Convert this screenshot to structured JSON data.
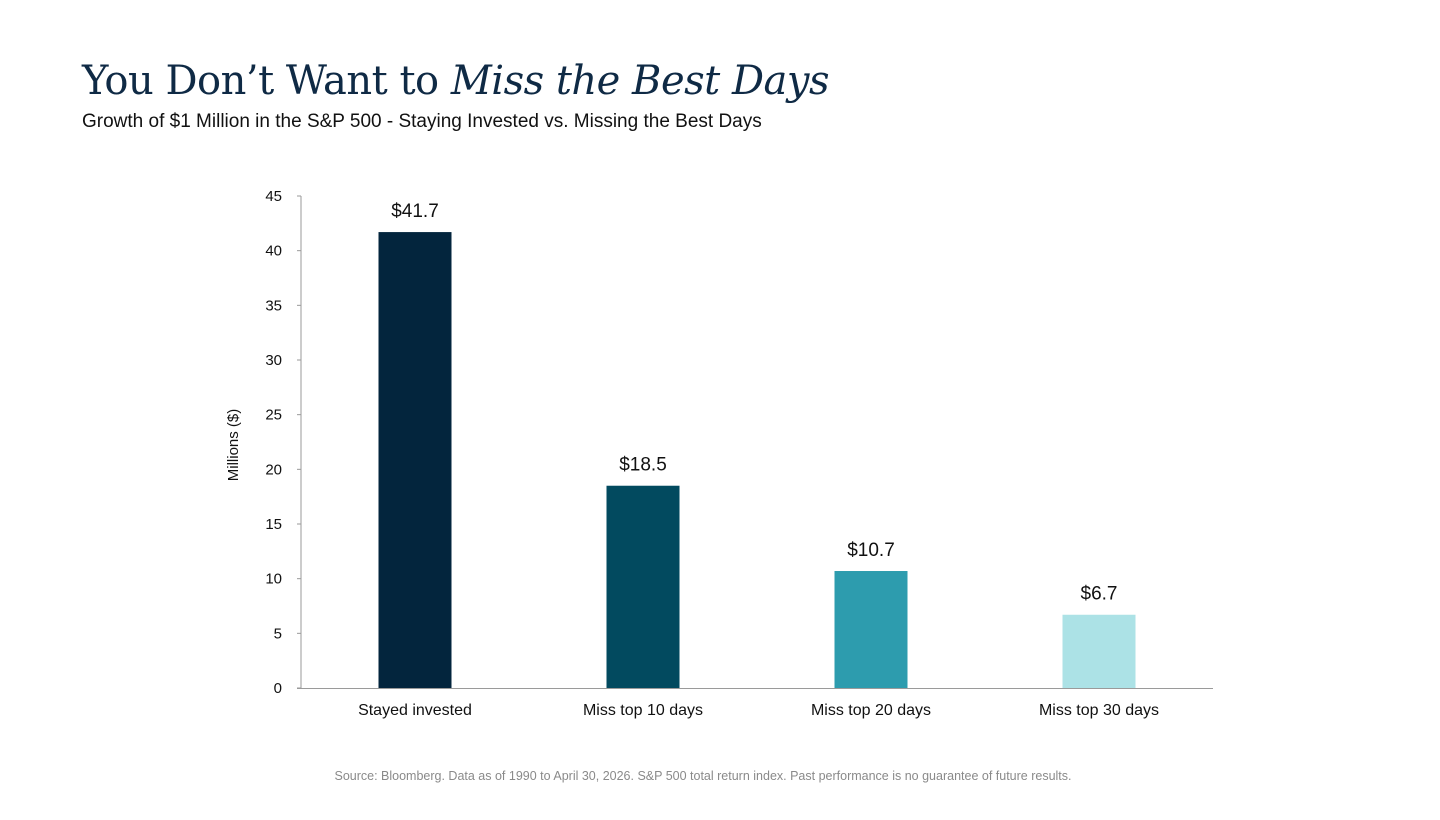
{
  "header": {
    "title_plain": "You Don’t Want to ",
    "title_emphasis": "Miss the Best Days",
    "subtitle": "Growth of $1 Million in the S&P 500 - Staying Invested vs. Missing the Best Days"
  },
  "chart_data": {
    "type": "bar",
    "title": "You Don’t Want to Miss the Best Days",
    "subtitle": "Growth of $1 Million in the S&P 500 - Staying Invested vs. Missing the Best Days",
    "xlabel": "",
    "ylabel": "Millions ($)",
    "ylim": [
      0,
      45
    ],
    "yticks": [
      0,
      5,
      10,
      15,
      20,
      25,
      30,
      35,
      40,
      45
    ],
    "grid": false,
    "legend": "none",
    "categories": [
      "Stayed invested",
      "Miss top 10 days",
      "Miss top 20 days",
      "Miss top 30 days"
    ],
    "values": [
      41.7,
      18.5,
      10.7,
      6.7
    ],
    "data_labels": [
      "$41.7",
      "$18.5",
      "$10.7",
      "$6.7"
    ],
    "colors": [
      "#03253d",
      "#024a5f",
      "#2d9cae",
      "#ace2e6"
    ]
  },
  "footer": {
    "source": "Source: Bloomberg. Data as of 1990 to April 30, 2026. S&P 500 total return index. Past performance is no guarantee of future results."
  }
}
